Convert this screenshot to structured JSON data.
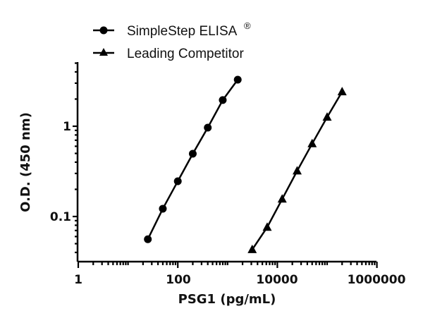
{
  "chart_data": {
    "type": "scatter",
    "title": "",
    "xlabel": "PSG1 (pg/mL)",
    "ylabel": "O.D. (450 nm)",
    "xscale": "log",
    "yscale": "log",
    "xlim": [
      1,
      1000000
    ],
    "ylim": [
      0.035,
      5
    ],
    "x_ticks": [
      1,
      100,
      10000,
      1000000
    ],
    "x_tick_labels": [
      "1",
      "100",
      "10000",
      "1000000"
    ],
    "y_ticks": [
      0.1,
      1
    ],
    "y_tick_labels": [
      "0.1",
      "1"
    ],
    "grid": false,
    "legend_position": "top-left",
    "series": [
      {
        "name": "SimpleStep ELISA",
        "name_suffix": "®",
        "marker": "circle",
        "line": true,
        "color": "#000000",
        "x": [
          25,
          50,
          100,
          200,
          400,
          800,
          1600
        ],
        "y": [
          0.056,
          0.122,
          0.246,
          0.496,
          0.965,
          1.95,
          3.28
        ]
      },
      {
        "name": "Leading Competitor",
        "name_suffix": "",
        "marker": "triangle",
        "line": true,
        "color": "#000000",
        "x": [
          3125,
          6250,
          12500,
          25000,
          50000,
          100000,
          200000
        ],
        "y": [
          0.043,
          0.076,
          0.156,
          0.32,
          0.64,
          1.26,
          2.41
        ]
      }
    ]
  },
  "legend": {
    "items": [
      {
        "label": "SimpleStep ELISA",
        "suffix": "®",
        "marker": "circle"
      },
      {
        "label": "Leading Competitor",
        "suffix": "",
        "marker": "triangle"
      }
    ]
  },
  "axes": {
    "x_title": "PSG1 (pg/mL)",
    "y_title": "O.D. (450 nm)"
  }
}
